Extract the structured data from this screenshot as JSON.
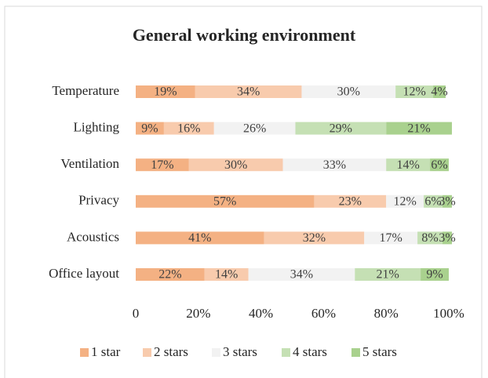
{
  "chart_data": {
    "type": "bar",
    "orientation": "horizontal",
    "stacked": true,
    "title": "General working environment",
    "categories": [
      "Temperature",
      "Lighting",
      "Ventilation",
      "Privacy",
      "Acoustics",
      "Office layout"
    ],
    "series": [
      {
        "name": "1 star",
        "color": "#f4b183",
        "values": [
          19,
          9,
          17,
          57,
          41,
          22
        ],
        "value_labels": [
          "19%",
          "9%",
          "17%",
          "57%",
          "41%",
          "22%"
        ]
      },
      {
        "name": "2 stars",
        "color": "#f8cbad",
        "values": [
          34,
          16,
          30,
          23,
          32,
          14
        ],
        "value_labels": [
          "34%",
          "16%",
          "30%",
          "23%",
          "32%",
          "14%"
        ]
      },
      {
        "name": "3 stars",
        "color": "#f2f2f2",
        "values": [
          30,
          26,
          33,
          12,
          17,
          34
        ],
        "value_labels": [
          "30%",
          "26%",
          "33%",
          "12%",
          "17%",
          "34%"
        ]
      },
      {
        "name": "4 stars",
        "color": "#c5e0b4",
        "values": [
          12,
          29,
          14,
          6,
          8,
          21
        ],
        "value_labels": [
          "12%",
          "29%",
          "14%",
          "6%",
          "8%",
          "21%"
        ]
      },
      {
        "name": "5 stars",
        "color": "#a9d18e",
        "values": [
          4,
          21,
          6,
          3,
          3,
          9
        ],
        "value_labels": [
          "4%",
          "21%",
          "6%",
          "3%",
          "3%",
          "9%"
        ]
      }
    ],
    "xlim": [
      0,
      100
    ],
    "xticks": [
      0,
      {
        "value": 20,
        "label": "20%"
      },
      {
        "value": 40,
        "label": "40%"
      },
      {
        "value": 60,
        "label": "60%"
      },
      {
        "value": 80,
        "label": "80%"
      },
      {
        "value": 100,
        "label": "100%"
      }
    ],
    "grid": false,
    "legend": "bottom"
  }
}
